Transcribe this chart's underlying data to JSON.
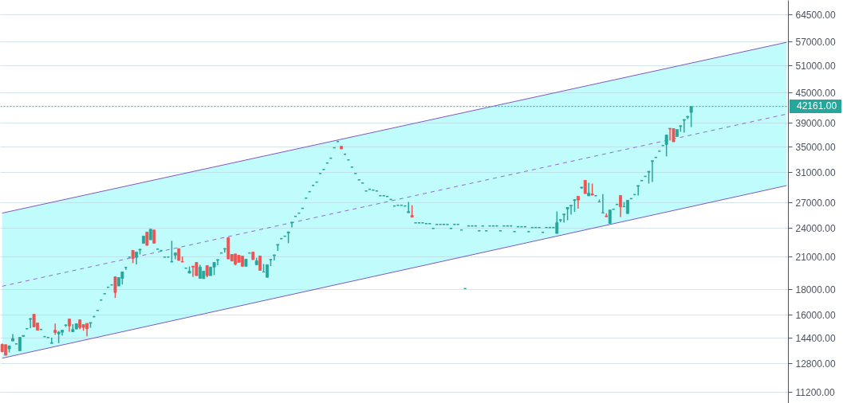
{
  "chart_data": {
    "type": "candlestick",
    "log": true,
    "grid": "y",
    "tick_labels": "y",
    "categories": [
      null,
      null,
      null,
      null,
      null,
      null,
      null,
      null,
      null,
      null,
      null,
      null,
      null,
      null,
      null,
      null,
      null,
      null,
      null,
      null,
      null,
      null,
      null,
      null,
      null,
      null,
      null,
      null,
      null,
      null,
      null,
      null,
      null,
      null,
      null,
      null,
      null,
      null,
      null,
      null,
      null,
      null,
      null,
      null,
      null,
      null,
      null,
      null,
      null,
      null,
      null,
      null,
      null,
      null,
      null,
      null,
      null,
      null,
      null,
      null,
      null,
      null,
      null,
      null,
      null,
      null,
      null,
      null,
      null,
      null,
      null,
      null,
      null,
      null,
      null,
      null,
      null,
      null,
      null,
      null,
      null,
      null,
      null,
      null,
      null,
      null,
      null,
      null,
      null,
      null,
      null,
      null,
      null,
      null,
      null,
      null,
      null,
      null,
      null,
      null,
      null,
      null,
      null,
      null,
      null,
      null,
      null,
      null,
      null,
      null,
      null,
      null,
      null,
      null,
      null,
      null,
      null,
      null,
      null,
      null,
      null,
      null,
      null,
      null,
      null,
      null,
      null,
      null,
      null,
      null,
      null,
      null,
      null,
      null,
      null,
      null,
      null,
      null,
      null,
      null,
      null,
      null,
      null,
      null,
      null,
      null,
      null,
      null,
      null,
      null,
      null,
      null,
      null,
      null,
      null,
      null,
      null,
      null,
      null,
      null,
      null,
      null,
      null,
      null,
      null,
      null,
      null,
      null,
      null,
      null,
      null,
      null,
      null,
      null,
      null,
      null,
      null,
      null,
      null,
      null,
      null,
      null,
      null,
      null,
      null,
      null,
      null,
      null,
      null,
      null,
      null,
      null,
      null,
      null,
      null,
      null,
      null,
      null,
      null,
      null,
      null,
      null,
      null,
      null,
      null,
      null,
      null,
      null,
      null,
      null,
      null,
      null,
      null,
      null,
      null,
      null,
      null,
      null,
      null,
      null,
      null,
      null,
      null
    ],
    "ohlc": [
      [
        13970,
        14020,
        13460,
        13510
      ],
      [
        13950,
        13950,
        13280,
        13280
      ],
      [
        13680,
        13900,
        13460,
        13870
      ],
      [
        14190,
        14650,
        14190,
        14350
      ],
      [
        14000,
        14000,
        14000,
        14000
      ],
      [
        13560,
        14460,
        13560,
        14430
      ],
      [
        14500,
        14560,
        14460,
        14560
      ],
      [
        15020,
        15020,
        15020,
        15020
      ],
      [
        15690,
        15780,
        15060,
        15750
      ],
      [
        16070,
        16070,
        15150,
        15150
      ],
      [
        15430,
        15430,
        14920,
        14920
      ],
      [
        14970,
        14970,
        14970,
        14970
      ],
      [
        14480,
        14480,
        14480,
        14480
      ],
      [
        14420,
        14420,
        14420,
        14420
      ],
      [
        14030,
        14420,
        14030,
        14070
      ],
      [
        14920,
        15380,
        14600,
        14760
      ],
      [
        14670,
        14870,
        14050,
        14780
      ],
      [
        14780,
        14920,
        14560,
        14920
      ],
      [
        15260,
        15320,
        15150,
        15290
      ],
      [
        15720,
        15720,
        14810,
        15220
      ],
      [
        14810,
        15340,
        14810,
        14970
      ],
      [
        15000,
        15380,
        15000,
        15380
      ],
      [
        15660,
        15660,
        15000,
        15110
      ],
      [
        15320,
        15320,
        14880,
        15110
      ],
      [
        15400,
        15400,
        14500,
        15020
      ],
      [
        15410,
        15470,
        15090,
        15460
      ],
      [
        15880,
        15950,
        15880,
        15880
      ],
      [
        16350,
        16350,
        16350,
        16350
      ],
      [
        17160,
        17160,
        17160,
        17160
      ],
      [
        17670,
        17670,
        17670,
        17670
      ],
      [
        18210,
        18210,
        18210,
        18210
      ],
      [
        18410,
        18410,
        18410,
        18410
      ],
      [
        19120,
        19120,
        17330,
        17780
      ],
      [
        18320,
        19050,
        18320,
        19050
      ],
      [
        18980,
        19560,
        18450,
        19560
      ],
      [
        19970,
        19970,
        19750,
        19970
      ],
      [
        20950,
        20950,
        20950,
        20950
      ],
      [
        21610,
        21610,
        20370,
        20820
      ],
      [
        20920,
        21450,
        20240,
        21450
      ],
      [
        21650,
        21740,
        21210,
        21730
      ],
      [
        22340,
        23100,
        22340,
        23100
      ],
      [
        23530,
        23530,
        22120,
        22120
      ],
      [
        22700,
        23900,
        22700,
        23850
      ],
      [
        23760,
        23760,
        22340,
        22340
      ],
      [
        21740,
        21740,
        21740,
        21740
      ],
      [
        21600,
        21600,
        21600,
        21600
      ],
      [
        20950,
        20950,
        20950,
        20950
      ],
      [
        20950,
        20950,
        20950,
        20950
      ],
      [
        20470,
        22590,
        20470,
        20520
      ],
      [
        21130,
        21370,
        20750,
        21370
      ],
      [
        21790,
        21790,
        20620,
        20620
      ],
      [
        20520,
        21000,
        20470,
        20470
      ],
      [
        19900,
        19900,
        19900,
        19900
      ],
      [
        19440,
        20050,
        19440,
        19630
      ],
      [
        20090,
        20090,
        19100,
        20000
      ],
      [
        20440,
        20440,
        19220,
        19220
      ],
      [
        18980,
        20220,
        18980,
        20000
      ],
      [
        18960,
        19630,
        18960,
        19630
      ],
      [
        20140,
        20140,
        19070,
        19220
      ],
      [
        19220,
        20000,
        19220,
        20000
      ],
      [
        20000,
        20440,
        19270,
        20440
      ],
      [
        20640,
        20730,
        20170,
        20710
      ],
      [
        21350,
        21350,
        21350,
        21350
      ],
      [
        21730,
        21820,
        21400,
        21800
      ],
      [
        22930,
        22930,
        20770,
        20770
      ],
      [
        21210,
        21210,
        20570,
        20570
      ],
      [
        21260,
        21260,
        20150,
        20270
      ],
      [
        21130,
        21130,
        20440,
        20440
      ],
      [
        21050,
        21050,
        20070,
        20070
      ],
      [
        20070,
        20750,
        20070,
        20750
      ],
      [
        21350,
        21350,
        21350,
        21350
      ],
      [
        21450,
        21450,
        20700,
        20700
      ],
      [
        20220,
        20880,
        20220,
        20600
      ],
      [
        21050,
        21050,
        19700,
        19700
      ],
      [
        19540,
        20290,
        19540,
        19560
      ],
      [
        19070,
        20220,
        19070,
        20220
      ],
      [
        20680,
        20750,
        20090,
        20730
      ],
      [
        21090,
        21190,
        20620,
        21170
      ],
      [
        22140,
        22230,
        21560,
        22220
      ],
      [
        22820,
        22820,
        22820,
        22820
      ],
      [
        23080,
        23080,
        23080,
        23080
      ],
      [
        23430,
        23580,
        22340,
        23550
      ],
      [
        24550,
        24660,
        24050,
        24640
      ],
      [
        25310,
        25310,
        25310,
        25310
      ],
      [
        25690,
        25690,
        25690,
        25690
      ],
      [
        26270,
        26270,
        26270,
        26270
      ],
      [
        27550,
        27550,
        27550,
        27550
      ],
      [
        28380,
        28380,
        28380,
        28380
      ],
      [
        29230,
        29230,
        29230,
        29230
      ],
      [
        29670,
        29670,
        29670,
        29670
      ],
      [
        30890,
        30890,
        30890,
        30890
      ],
      [
        31460,
        31460,
        31460,
        31460
      ],
      [
        32420,
        32420,
        32420,
        32420
      ],
      [
        33160,
        33160,
        33160,
        33160
      ],
      [
        34810,
        34810,
        34810,
        34810
      ],
      [
        35830,
        35830,
        35830,
        35830
      ],
      [
        35050,
        35050,
        34610,
        34610
      ],
      [
        33770,
        33770,
        33770,
        33770
      ],
      [
        32900,
        32900,
        32900,
        32900
      ],
      [
        31820,
        31820,
        31820,
        31820
      ],
      [
        30890,
        30890,
        30890,
        30890
      ],
      [
        29990,
        29990,
        29990,
        29990
      ],
      [
        29550,
        29550,
        29550,
        29550
      ],
      [
        28480,
        28480,
        28480,
        28480
      ],
      [
        28700,
        28700,
        28700,
        28700
      ],
      [
        28590,
        28590,
        28590,
        28590
      ],
      [
        28480,
        28480,
        28480,
        28480
      ],
      [
        27860,
        27860,
        27860,
        27860
      ],
      [
        27860,
        27860,
        27860,
        27860
      ],
      [
        27760,
        27760,
        27760,
        27760
      ],
      [
        27380,
        27380,
        27380,
        27380
      ],
      [
        26560,
        26560,
        26560,
        26560
      ],
      [
        26650,
        26650,
        26650,
        26650
      ],
      [
        26650,
        26650,
        26650,
        26650
      ],
      [
        26560,
        26560,
        26560,
        26560
      ],
      [
        25740,
        27060,
        25740,
        25880
      ],
      [
        25430,
        26650,
        25210,
        25210
      ],
      [
        24560,
        24560,
        24560,
        24560
      ],
      [
        24560,
        24560,
        24560,
        24560
      ],
      [
        24560,
        24560,
        24560,
        24560
      ],
      [
        24470,
        24470,
        24470,
        24470
      ],
      [
        24470,
        24470,
        24470,
        24470
      ],
      [
        23930,
        23930,
        23930,
        23930
      ],
      [
        24380,
        24380,
        24380,
        24380
      ],
      [
        24380,
        24380,
        24380,
        24380
      ],
      [
        24380,
        24380,
        24380,
        24380
      ],
      [
        24380,
        24380,
        24380,
        24380
      ],
      [
        23930,
        23930,
        23930,
        23930
      ],
      [
        24380,
        24380,
        24380,
        24380
      ],
      [
        24380,
        24380,
        24380,
        24380
      ],
      [
        23760,
        23760,
        23760,
        23760
      ],
      [
        18100,
        18100,
        18100,
        18100
      ],
      [
        24210,
        24210,
        24210,
        24210
      ],
      [
        24210,
        24210,
        24210,
        24210
      ],
      [
        24210,
        24210,
        24210,
        24210
      ],
      [
        23670,
        23670,
        23670,
        23670
      ],
      [
        24210,
        24210,
        24210,
        24210
      ],
      [
        23670,
        23670,
        23670,
        23670
      ],
      [
        24210,
        24210,
        24210,
        24210
      ],
      [
        24210,
        24210,
        24210,
        24210
      ],
      [
        24210,
        24210,
        24210,
        24210
      ],
      [
        23670,
        23670,
        23670,
        23670
      ],
      [
        24210,
        24210,
        24210,
        24210
      ],
      [
        24210,
        24210,
        24210,
        24210
      ],
      [
        24210,
        24210,
        24210,
        24210
      ],
      [
        23580,
        23580,
        23580,
        23580
      ],
      [
        24120,
        24120,
        24120,
        24120
      ],
      [
        24120,
        24120,
        24120,
        24120
      ],
      [
        24120,
        24120,
        24120,
        24120
      ],
      [
        23580,
        23580,
        23580,
        23580
      ],
      [
        24030,
        24030,
        24030,
        24030
      ],
      [
        24030,
        24030,
        24030,
        24030
      ],
      [
        24030,
        24030,
        24030,
        24030
      ],
      [
        23500,
        23500,
        23500,
        23500
      ],
      [
        24030,
        24030,
        24030,
        24030
      ],
      [
        24030,
        24030,
        24030,
        24030
      ],
      [
        24030,
        24030,
        24030,
        24030
      ],
      [
        23380,
        25900,
        23380,
        24580
      ],
      [
        24860,
        24960,
        24640,
        24930
      ],
      [
        25500,
        25610,
        24580,
        25590
      ],
      [
        26200,
        26390,
        24860,
        26390
      ],
      [
        26560,
        26680,
        25520,
        26650
      ],
      [
        27250,
        27380,
        25840,
        27350
      ],
      [
        27790,
        27790,
        26230,
        27310
      ],
      [
        28880,
        29020,
        28760,
        28990
      ],
      [
        29920,
        29920,
        28130,
        28130
      ],
      [
        27830,
        29590,
        27830,
        28200
      ],
      [
        28100,
        29480,
        27930,
        27930
      ],
      [
        27860,
        27860,
        27860,
        27860
      ],
      [
        27060,
        27380,
        27060,
        27080
      ],
      [
        25710,
        28070,
        25710,
        25740
      ],
      [
        25360,
        25680,
        25260,
        25260
      ],
      [
        24500,
        26070,
        24500,
        26070
      ],
      [
        26160,
        26160,
        26160,
        26160
      ],
      [
        26750,
        26750,
        26750,
        26750
      ],
      [
        27890,
        27890,
        25240,
        26460
      ],
      [
        26460,
        27060,
        26460,
        26490
      ],
      [
        25640,
        27280,
        25640,
        27280
      ],
      [
        27480,
        27480,
        27480,
        27480
      ],
      [
        28000,
        28000,
        28000,
        28000
      ],
      [
        29100,
        29240,
        27890,
        29210
      ],
      [
        29880,
        29880,
        29880,
        29880
      ],
      [
        30480,
        30480,
        30480,
        30480
      ],
      [
        31080,
        31230,
        29480,
        31200
      ],
      [
        32660,
        32820,
        29700,
        32780
      ],
      [
        33280,
        33280,
        33280,
        33280
      ],
      [
        34260,
        34260,
        34260,
        34260
      ],
      [
        35170,
        35170,
        35170,
        35170
      ],
      [
        35340,
        36940,
        33440,
        36940
      ],
      [
        38090,
        38150,
        36000,
        37960
      ],
      [
        38050,
        38050,
        35780,
        35780
      ],
      [
        36670,
        37880,
        36670,
        37880
      ],
      [
        38420,
        38600,
        37490,
        38560
      ],
      [
        39540,
        39740,
        37350,
        39690
      ],
      [
        40120,
        40320,
        39780,
        40270
      ],
      [
        41030,
        42161,
        38330,
        42161
      ],
      null,
      null,
      null,
      null,
      null,
      null,
      null,
      null,
      null,
      null,
      null,
      null,
      null,
      null,
      null,
      null,
      null,
      null,
      null,
      null,
      null,
      null,
      null,
      null,
      null,
      null,
      null
    ],
    "colors": [
      "#ef5350",
      "#ef5350",
      "#26a69a",
      "#26a69a",
      "#26a69a",
      "#26a69a",
      "#26a69a",
      "#26a69a",
      "#26a69a",
      "#ef5350",
      "#ef5350",
      "#26a69a",
      "#26a69a",
      "#26a69a",
      "#26a69a",
      "#ef5350",
      "#26a69a",
      "#26a69a",
      "#26a69a",
      "#ef5350",
      "#26a69a",
      "#26a69a",
      "#ef5350",
      "#ef5350",
      "#ef5350",
      "#26a69a",
      "#26a69a",
      "#26a69a",
      "#26a69a",
      "#26a69a",
      "#26a69a",
      "#26a69a",
      "#ef5350",
      "#26a69a",
      "#26a69a",
      "#26a69a",
      "#26a69a",
      "#ef5350",
      "#26a69a",
      "#26a69a",
      "#26a69a",
      "#ef5350",
      "#26a69a",
      "#ef5350",
      "#26a69a",
      "#26a69a",
      "#26a69a",
      "#26a69a",
      "#26a69a",
      "#26a69a",
      "#ef5350",
      "#ef5350",
      "#26a69a",
      "#26a69a",
      "#ef5350",
      "#ef5350",
      "#26a69a",
      "#26a69a",
      "#ef5350",
      "#26a69a",
      "#26a69a",
      "#26a69a",
      "#26a69a",
      "#26a69a",
      "#ef5350",
      "#ef5350",
      "#ef5350",
      "#ef5350",
      "#ef5350",
      "#26a69a",
      "#26a69a",
      "#ef5350",
      "#26a69a",
      "#ef5350",
      "#26a69a",
      "#26a69a",
      "#26a69a",
      "#26a69a",
      "#26a69a",
      "#26a69a",
      "#26a69a",
      "#26a69a",
      "#26a69a",
      "#26a69a",
      "#26a69a",
      "#26a69a",
      "#26a69a",
      "#26a69a",
      "#26a69a",
      "#26a69a",
      "#26a69a",
      "#26a69a",
      "#26a69a",
      "#26a69a",
      "#26a69a",
      "#26a69a",
      "#ef5350",
      "#26a69a",
      "#26a69a",
      "#26a69a",
      "#26a69a",
      "#26a69a",
      "#26a69a",
      "#26a69a",
      "#26a69a",
      "#26a69a",
      "#26a69a",
      "#26a69a",
      "#26a69a",
      "#26a69a",
      "#26a69a",
      "#26a69a",
      "#26a69a",
      "#26a69a",
      "#26a69a",
      "#26a69a",
      "#ef5350",
      "#26a69a",
      "#26a69a",
      "#26a69a",
      "#26a69a",
      "#26a69a",
      "#26a69a",
      "#26a69a",
      "#26a69a",
      "#26a69a",
      "#26a69a",
      "#26a69a",
      "#26a69a",
      "#26a69a",
      "#26a69a",
      "#26a69a",
      "#26a69a",
      "#26a69a",
      "#26a69a",
      "#26a69a",
      "#26a69a",
      "#26a69a",
      "#26a69a",
      "#26a69a",
      "#26a69a",
      "#26a69a",
      "#26a69a",
      "#26a69a",
      "#26a69a",
      "#26a69a",
      "#26a69a",
      "#26a69a",
      "#26a69a",
      "#26a69a",
      "#26a69a",
      "#26a69a",
      "#26a69a",
      "#26a69a",
      "#26a69a",
      "#26a69a",
      "#26a69a",
      "#26a69a",
      "#26a69a",
      "#26a69a",
      "#26a69a",
      "#26a69a",
      "#26a69a",
      "#ef5350",
      "#26a69a",
      "#ef5350",
      "#26a69a",
      "#ef5350",
      "#26a69a",
      "#26a69a",
      "#26a69a",
      "#ef5350",
      "#26a69a",
      "#26a69a",
      "#26a69a",
      "#ef5350",
      "#26a69a",
      "#26a69a",
      "#26a69a",
      "#26a69a",
      "#26a69a",
      "#26a69a",
      "#26a69a",
      "#26a69a",
      "#26a69a",
      "#26a69a",
      "#26a69a",
      "#26a69a",
      "#26a69a",
      "#ef5350",
      "#ef5350",
      "#26a69a",
      "#26a69a",
      "#26a69a",
      "#26a69a",
      "#26a69a",
      null,
      null,
      null,
      null,
      null,
      null,
      null,
      null,
      null,
      null,
      null,
      null,
      null,
      null,
      null,
      null,
      null,
      null,
      null,
      null,
      null,
      null,
      null,
      null,
      null,
      null,
      null
    ],
    "series": [
      {
        "type": "line",
        "color": "#7e57c2",
        "values": [
          13100,
          null,
          null,
          null,
          null,
          null,
          null,
          null,
          null,
          null,
          null,
          null,
          null,
          null,
          null,
          null,
          null,
          null,
          null,
          null,
          null,
          null,
          null,
          null,
          null,
          null,
          null,
          null,
          null,
          null,
          null,
          null,
          null,
          null,
          null,
          null,
          null,
          null,
          null,
          null,
          null,
          null,
          null,
          null,
          null,
          null,
          null,
          null,
          null,
          null,
          null,
          null,
          null,
          null,
          null,
          null,
          null,
          null,
          null,
          null,
          null,
          null,
          null,
          null,
          null,
          null,
          null,
          null,
          null,
          null,
          null,
          null,
          null,
          null,
          null,
          null,
          null,
          null,
          null,
          null,
          null,
          null,
          null,
          null,
          null,
          null,
          null,
          null,
          null,
          null,
          null,
          null,
          null,
          null,
          null,
          null,
          null,
          null,
          null,
          null,
          null,
          null,
          null,
          null,
          null,
          null,
          null,
          null,
          null,
          null,
          null,
          null,
          null,
          null,
          null,
          null,
          null,
          null,
          null,
          null,
          null,
          null,
          null,
          null,
          null,
          null,
          null,
          null,
          null,
          null,
          null,
          null,
          null,
          null,
          null,
          null,
          null,
          null,
          null,
          null,
          null,
          null,
          null,
          null,
          null,
          null,
          null,
          null,
          null,
          null,
          null,
          null,
          null,
          null,
          null,
          null,
          null,
          null,
          null,
          null,
          null,
          null,
          null,
          null,
          null,
          null,
          null,
          null,
          null,
          null,
          null,
          null,
          null,
          null,
          null,
          null,
          null,
          null,
          null,
          null,
          null,
          null,
          null,
          null,
          null,
          null,
          null,
          null,
          null,
          null,
          null,
          null,
          null,
          null,
          null,
          null,
          null,
          null,
          null,
          null,
          null,
          null,
          null,
          null,
          null,
          null,
          null,
          null,
          null,
          null,
          null,
          null,
          null,
          null,
          null,
          null,
          null,
          null,
          null,
          null,
          null,
          null,
          29200
        ]
      },
      {
        "type": "area",
        "color": "#c1fcfc",
        "values": [
          25700,
          null,
          null,
          null,
          null,
          null,
          null,
          null,
          null,
          null,
          null,
          null,
          null,
          null,
          null,
          null,
          null,
          null,
          null,
          null,
          null,
          null,
          null,
          null,
          null,
          null,
          null,
          null,
          null,
          null,
          null,
          null,
          null,
          null,
          null,
          null,
          null,
          null,
          null,
          null,
          null,
          null,
          null,
          null,
          null,
          null,
          null,
          null,
          null,
          null,
          null,
          null,
          null,
          null,
          null,
          null,
          null,
          null,
          null,
          null,
          null,
          null,
          null,
          null,
          null,
          null,
          null,
          null,
          null,
          null,
          null,
          null,
          null,
          null,
          null,
          null,
          null,
          null,
          null,
          null,
          null,
          null,
          null,
          null,
          null,
          null,
          null,
          null,
          null,
          null,
          null,
          null,
          null,
          null,
          null,
          null,
          null,
          null,
          null,
          null,
          null,
          null,
          null,
          null,
          null,
          null,
          null,
          null,
          null,
          null,
          null,
          null,
          null,
          null,
          null,
          null,
          null,
          null,
          null,
          null,
          null,
          null,
          null,
          null,
          null,
          null,
          null,
          null,
          null,
          null,
          null,
          null,
          null,
          null,
          null,
          null,
          null,
          null,
          null,
          null,
          null,
          null,
          null,
          null,
          null,
          null,
          null,
          null,
          null,
          null,
          null,
          null,
          null,
          null,
          null,
          null,
          null,
          null,
          null,
          null,
          null,
          null,
          null,
          null,
          null,
          null,
          null,
          null,
          null,
          null,
          null,
          null,
          null,
          null,
          null,
          null,
          null,
          null,
          null,
          null,
          null,
          null,
          null,
          null,
          null,
          null,
          null,
          null,
          null,
          null,
          null,
          null,
          null,
          null,
          null,
          null,
          null,
          null,
          null,
          null,
          null,
          null,
          null,
          null,
          null,
          null,
          null,
          null,
          null,
          null,
          null,
          null,
          null,
          null,
          null,
          null,
          null,
          null,
          null,
          null,
          null,
          null,
          56800
        ]
      },
      {
        "type": "line",
        "color": "#7e57c2",
        "values": [
          25700,
          null,
          null,
          null,
          null,
          null,
          null,
          null,
          null,
          null,
          null,
          null,
          null,
          null,
          null,
          null,
          null,
          null,
          null,
          null,
          null,
          null,
          null,
          null,
          null,
          null,
          null,
          null,
          null,
          null,
          null,
          null,
          null,
          null,
          null,
          null,
          null,
          null,
          null,
          null,
          null,
          null,
          null,
          null,
          null,
          null,
          null,
          null,
          null,
          null,
          null,
          null,
          null,
          null,
          null,
          null,
          null,
          null,
          null,
          null,
          null,
          null,
          null,
          null,
          null,
          null,
          null,
          null,
          null,
          null,
          null,
          null,
          null,
          null,
          null,
          null,
          null,
          null,
          null,
          null,
          null,
          null,
          null,
          null,
          null,
          null,
          null,
          null,
          null,
          null,
          null,
          null,
          null,
          null,
          null,
          null,
          null,
          null,
          null,
          null,
          null,
          null,
          null,
          null,
          null,
          null,
          null,
          null,
          null,
          null,
          null,
          null,
          null,
          null,
          null,
          null,
          null,
          null,
          null,
          null,
          null,
          null,
          null,
          null,
          null,
          null,
          null,
          null,
          null,
          null,
          null,
          null,
          null,
          null,
          null,
          null,
          null,
          null,
          null,
          null,
          null,
          null,
          null,
          null,
          null,
          null,
          null,
          null,
          null,
          null,
          null,
          null,
          null,
          null,
          null,
          null,
          null,
          null,
          null,
          null,
          null,
          null,
          null,
          null,
          null,
          null,
          null,
          null,
          null,
          null,
          null,
          null,
          null,
          null,
          null,
          null,
          null,
          null,
          null,
          null,
          null,
          null,
          null,
          null,
          null,
          null,
          null,
          null,
          null,
          null,
          null,
          null,
          null,
          null,
          null,
          null,
          null,
          null,
          null,
          null,
          null,
          null,
          null,
          null,
          null,
          null,
          null,
          null,
          null,
          null,
          null,
          null,
          null,
          null,
          null,
          null,
          null,
          null,
          null,
          null,
          null,
          null,
          56800
        ]
      },
      {
        "type": "line",
        "color": "#8e6bc9",
        "line_style": "dashed",
        "values": [
          18300,
          null,
          null,
          null,
          null,
          null,
          null,
          null,
          null,
          null,
          null,
          null,
          null,
          null,
          null,
          null,
          null,
          null,
          null,
          null,
          null,
          null,
          null,
          null,
          null,
          null,
          null,
          null,
          null,
          null,
          null,
          null,
          null,
          null,
          null,
          null,
          null,
          null,
          null,
          null,
          null,
          null,
          null,
          null,
          null,
          null,
          null,
          null,
          null,
          null,
          null,
          null,
          null,
          null,
          null,
          null,
          null,
          null,
          null,
          null,
          null,
          null,
          null,
          null,
          null,
          null,
          null,
          null,
          null,
          null,
          null,
          null,
          null,
          null,
          null,
          null,
          null,
          null,
          null,
          null,
          null,
          null,
          null,
          null,
          null,
          null,
          null,
          null,
          null,
          null,
          null,
          null,
          null,
          null,
          null,
          null,
          null,
          null,
          null,
          null,
          null,
          null,
          null,
          null,
          null,
          null,
          null,
          null,
          null,
          null,
          null,
          null,
          null,
          null,
          null,
          null,
          null,
          null,
          null,
          null,
          null,
          null,
          null,
          null,
          null,
          null,
          null,
          null,
          null,
          null,
          null,
          null,
          null,
          null,
          null,
          null,
          null,
          null,
          null,
          null,
          null,
          null,
          null,
          null,
          null,
          null,
          null,
          null,
          null,
          null,
          null,
          null,
          null,
          null,
          null,
          null,
          null,
          null,
          null,
          null,
          null,
          null,
          null,
          null,
          null,
          null,
          null,
          null,
          null,
          null,
          null,
          null,
          null,
          null,
          null,
          null,
          null,
          null,
          null,
          null,
          null,
          null,
          null,
          null,
          null,
          null,
          null,
          null,
          null,
          null,
          null,
          null,
          null,
          null,
          null,
          null,
          null,
          null,
          null,
          null,
          null,
          null,
          null,
          null,
          null,
          null,
          null,
          null,
          null,
          null,
          null,
          null,
          null,
          null,
          null,
          null,
          null,
          null,
          null,
          null,
          null,
          null,
          40700
        ]
      }
    ],
    "ylim": [
      10620,
      69000
    ],
    "yticks": [
      {
        "value": 11200,
        "label": "11200.00"
      },
      {
        "value": 12800,
        "label": "12800.00"
      },
      {
        "value": 14400,
        "label": "14400.00"
      },
      {
        "value": 16000,
        "label": "16000.00"
      },
      {
        "value": 18000,
        "label": "18000.00"
      },
      {
        "value": 21000,
        "label": "21000.00"
      },
      {
        "value": 24000,
        "label": "24000.00"
      },
      {
        "value": 27000,
        "label": "27000.00"
      },
      {
        "value": 31000,
        "label": "31000.00"
      },
      {
        "value": 35000,
        "label": "35000.00"
      },
      {
        "value": 39000,
        "label": "39000.00"
      },
      {
        "value": 45000,
        "label": "45000.00"
      },
      {
        "value": 51000,
        "label": "51000.00"
      },
      {
        "value": 57000,
        "label": "57000.00"
      },
      {
        "value": 64500,
        "label": "64500.00"
      }
    ],
    "ref_lines": [
      {
        "axis": "y",
        "value": 42161,
        "label": "42161.00",
        "color": "#26a69a",
        "line_style": "dotted"
      }
    ]
  }
}
